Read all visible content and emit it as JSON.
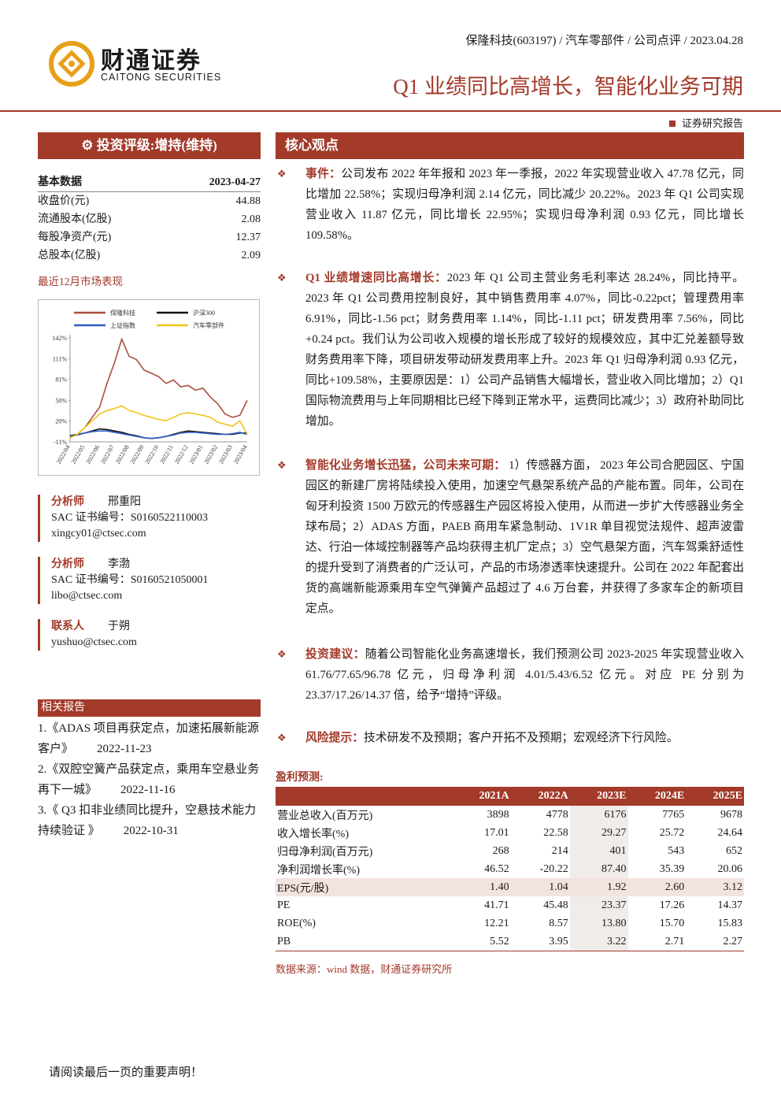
{
  "header": {
    "breadcrumb": "保隆科技(603197) / 汽车零部件 / 公司点评 / 2023.04.28",
    "logo_cn": "财通证券",
    "logo_en": "CAITONG SECURITIES",
    "title": "Q1 业绩同比高增长，智能化业务可期",
    "report_type": "证券研究报告"
  },
  "rating": "投资评级:增持(维持)",
  "basic_data": {
    "title": "基本数据",
    "date": "2023-04-27",
    "rows": [
      [
        "收盘价(元)",
        "44.88"
      ],
      [
        "流通股本(亿股)",
        "2.08"
      ],
      [
        "每股净资产(元)",
        "12.37"
      ],
      [
        "总股本(亿股)",
        "2.09"
      ]
    ]
  },
  "market_title": "最近12月市场表现",
  "chart_data": {
    "type": "line",
    "categories": [
      "2022/04",
      null,
      "2022/05",
      null,
      "2022/06",
      null,
      "2022/07",
      null,
      "2022/08",
      null,
      "2022/09",
      null,
      "2022/10",
      null,
      "2022/11",
      null,
      "2022/12",
      null,
      "2023/01",
      null,
      "2023/02",
      null,
      "2023/03",
      null,
      "2023/04"
    ],
    "series": [
      {
        "name": "保隆科技",
        "color": "#a9503e",
        "values": [
          -5,
          0,
          10,
          25,
          40,
          75,
          105,
          140,
          115,
          110,
          95,
          90,
          85,
          75,
          80,
          70,
          72,
          65,
          68,
          55,
          45,
          30,
          25,
          28,
          50
        ]
      },
      {
        "name": "沪深300",
        "color": "#111111",
        "values": [
          -2,
          0,
          2,
          5,
          8,
          7,
          5,
          3,
          0,
          -2,
          -5,
          -6,
          -5,
          -3,
          0,
          3,
          5,
          4,
          3,
          2,
          1,
          0,
          0,
          2,
          2
        ]
      },
      {
        "name": "上证指数",
        "color": "#2e5fc4",
        "values": [
          -3,
          -1,
          2,
          4,
          5,
          5,
          3,
          1,
          -1,
          -3,
          -5,
          -6,
          -5,
          -3,
          -1,
          2,
          3,
          3,
          2,
          1,
          0,
          0,
          1,
          3,
          0
        ]
      },
      {
        "name": "汽车零部件",
        "color": "#f0c419",
        "values": [
          -5,
          0,
          10,
          20,
          30,
          35,
          38,
          42,
          35,
          32,
          28,
          25,
          22,
          20,
          25,
          30,
          32,
          30,
          28,
          25,
          18,
          15,
          12,
          20,
          0
        ]
      }
    ],
    "ylim": [
      -11,
      142
    ],
    "yticks": [
      {
        "value": -11,
        "label": "-11%"
      },
      {
        "value": 20,
        "label": "20%"
      },
      {
        "value": 50,
        "label": "50%"
      },
      {
        "value": 81,
        "label": "81%"
      },
      {
        "value": 111,
        "label": "111%"
      },
      {
        "value": 142,
        "label": "142%"
      }
    ]
  },
  "analysts": [
    {
      "role": "分析师",
      "name": "邢重阳",
      "cert": "SAC 证书编号：S0160522110003",
      "email": "xingcy01@ctsec.com"
    },
    {
      "role": "分析师",
      "name": "李渤",
      "cert": "SAC 证书编号：S0160521050001",
      "email": "libo@ctsec.com"
    },
    {
      "role": "联系人",
      "name": "于朔",
      "email": "yushuo@ctsec.com"
    }
  ],
  "related": {
    "title": "相关报告",
    "items": [
      {
        "text": "1.《ADAS 项目再获定点，加速拓展新能源客户》",
        "date": "2022-11-23"
      },
      {
        "text": "2.《双腔空簧产品获定点，乘用车空悬业务再下一城》",
        "date": "2022-11-16"
      },
      {
        "text": "3.《 Q3 扣非业绩同比提升，空悬技术能力持续验证 》",
        "date": "2022-10-31"
      }
    ]
  },
  "core": {
    "title": "核心观点",
    "paragraphs": [
      {
        "lead": "事件：",
        "text": "公司发布 2022 年年报和 2023 年一季报，2022 年实现营业收入 47.78 亿元，同比增加 22.58%；实现归母净利润 2.14 亿元，同比减少 20.22%。2023 年 Q1 公司实现营业收入 11.87 亿元，同比增长 22.95%；实现归母净利润 0.93 亿元，同比增长 109.58%。"
      },
      {
        "lead": "Q1 业绩增速同比高增长：",
        "text": "2023 年 Q1 公司主营业务毛利率达 28.24%，同比持平。2023 年 Q1 公司费用控制良好，其中销售费用率 4.07%，同比-0.22pct；管理费用率 6.91%，同比-1.56 pct；财务费用率 1.14%，同比-1.11 pct；研发费用率 7.56%，同比+0.24 pct。我们认为公司收入规模的增长形成了较好的规模效应，其中汇兑差额导致财务费用率下降，项目研发带动研发费用率上升。2023 年 Q1 归母净利润 0.93 亿元，同比+109.58%，主要原因是：1）公司产品销售大幅增长，营业收入同比增加；2）Q1 国际物流费用与上年同期相比已经下降到正常水平，运费同比减少；3）政府补助同比增加。"
      },
      {
        "lead": "智能化业务增长迅猛，公司未来可期：",
        "text": " 1）传感器方面， 2023 年公司合肥园区、宁国园区的新建厂房将陆续投入使用，加速空气悬架系统产品的产能布置。同年，公司在匈牙利投资 1500 万欧元的传感器生产园区将投入使用，从而进一步扩大传感器业务全球布局；2）ADAS 方面，PAEB 商用车紧急制动、1V1R 单目视觉法规件、超声波雷达、行泊一体域控制器等产品均获得主机厂定点；3）空气悬架方面，汽车驾乘舒适性的提升受到了消费者的广泛认可，产品的市场渗透率快速提升。公司在 2022 年配套出货的高端新能源乘用车空气弹簧产品超过了 4.6 万台套，并获得了多家车企的新项目定点。"
      },
      {
        "lead": "投资建议：",
        "text": "随着公司智能化业务高速增长，我们预测公司 2023-2025 年实现营业收入 61.76/77.65/96.78 亿元，归母净利润 4.01/5.43/6.52 亿元。对应 PE 分别为 23.37/17.26/14.37 倍，给予“增持”评级。"
      },
      {
        "lead": "风险提示：",
        "text": "技术研发不及预期；客户开拓不及预期；宏观经济下行风险。"
      }
    ]
  },
  "forecast": {
    "title": "盈利预测:",
    "header": [
      "2021A",
      "2022A",
      "2023E",
      "2024E",
      "2025E"
    ],
    "rows": [
      [
        "营业总收入(百万元)",
        "3898",
        "4778",
        "6176",
        "7765",
        "9678"
      ],
      [
        "收入增长率(%)",
        "17.01",
        "22.58",
        "29.27",
        "25.72",
        "24.64"
      ],
      [
        "归母净利润(百万元)",
        "268",
        "214",
        "401",
        "543",
        "652"
      ],
      [
        "净利润增长率(%)",
        "46.52",
        "-20.22",
        "87.40",
        "35.39",
        "20.06"
      ],
      [
        "EPS(元/股)",
        "1.40",
        "1.04",
        "1.92",
        "2.60",
        "3.12"
      ],
      [
        "PE",
        "41.71",
        "45.48",
        "23.37",
        "17.26",
        "14.37"
      ],
      [
        "ROE(%)",
        "12.21",
        "8.57",
        "13.80",
        "15.70",
        "15.83"
      ],
      [
        "PB",
        "5.52",
        "3.95",
        "3.22",
        "2.71",
        "2.27"
      ]
    ],
    "source": "数据来源：wind 数据，财通证券研究所"
  },
  "footer": "请阅读最后一页的重要声明！"
}
